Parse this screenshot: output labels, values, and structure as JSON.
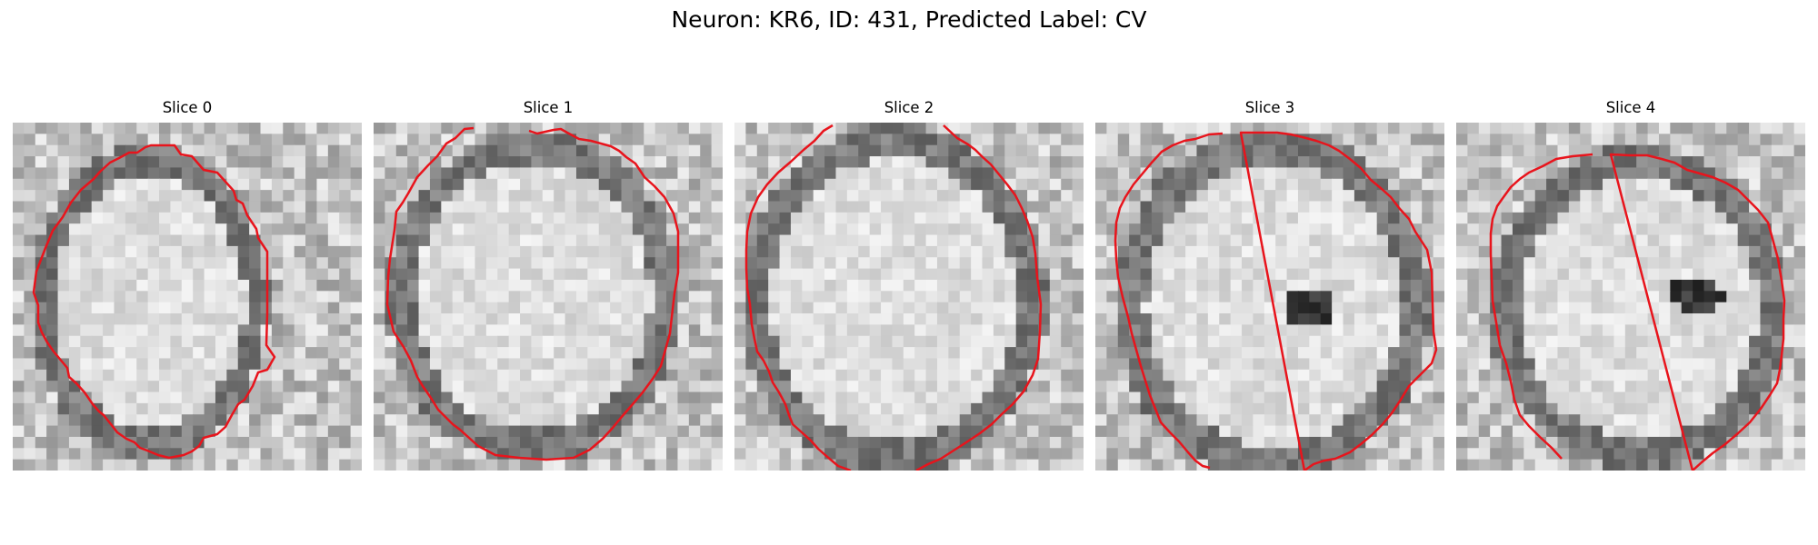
{
  "figure": {
    "title": "Neuron: KR6, ID: 431, Predicted Label: CV"
  },
  "colors": {
    "contour": "#e8141c",
    "background": "#ffffff"
  },
  "slices": [
    {
      "label": "Slice 0"
    },
    {
      "label": "Slice 1"
    },
    {
      "label": "Slice 2"
    },
    {
      "label": "Slice 3"
    },
    {
      "label": "Slice 4"
    }
  ]
}
